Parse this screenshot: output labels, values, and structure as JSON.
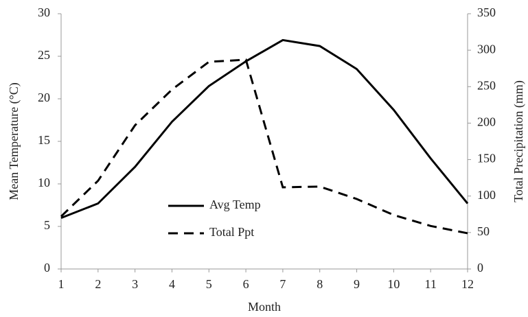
{
  "chart_data": {
    "type": "line",
    "x_label": "Month",
    "y_label": "Mean Temperature (°C)",
    "y2_label": "Total Precipitation (mm)",
    "x": [
      1,
      2,
      3,
      4,
      5,
      6,
      7,
      8,
      9,
      10,
      11,
      12
    ],
    "series": [
      {
        "name": "Avg Temp",
        "color": "#000000",
        "dash": false,
        "values": [
          6.0,
          7.7,
          12.0,
          17.3,
          21.5,
          24.4,
          26.9,
          26.2,
          23.5,
          18.7,
          13.0,
          7.7
        ]
      },
      {
        "name": "Total Ppt",
        "color": "#000000",
        "dash": true,
        "axis": "y2",
        "values": [
          72,
          121,
          197,
          246,
          284,
          287,
          112,
          113,
          96,
          74,
          59,
          49
        ]
      }
    ],
    "xlim": [
      1,
      12
    ],
    "xticks": [
      1,
      2,
      3,
      4,
      5,
      6,
      7,
      8,
      9,
      10,
      11,
      12
    ],
    "ylim": [
      0,
      30
    ],
    "yticks": [
      0,
      5,
      10,
      15,
      20,
      25,
      30
    ],
    "y2lim": [
      0,
      350
    ],
    "y2ticks": [
      0,
      50,
      100,
      150,
      200,
      250,
      300,
      350
    ],
    "grid": false,
    "legend": "lower center"
  }
}
